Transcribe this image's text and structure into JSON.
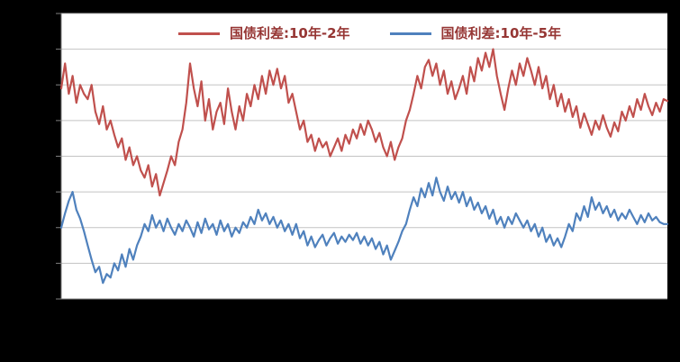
{
  "colors": {
    "page_bg": "#000000",
    "plot_bg": "#ffffff",
    "grid": "#c3c3c3",
    "axis": "#808080",
    "legend_text": "#963634"
  },
  "legend": {
    "series1_label": "国债利差:10年-2年",
    "series2_label": "国债利差:10年-5年"
  },
  "chart_data": {
    "type": "line",
    "title": "",
    "xlabel": "",
    "ylabel": "",
    "ylim": [
      0,
      160
    ],
    "gridline_step": 20,
    "grid": true,
    "legend_position": "top",
    "series": [
      {
        "name": "国债利差:10年-2年",
        "color": "#C0504D",
        "values": [
          118,
          132,
          115,
          125,
          110,
          120,
          115,
          112,
          120,
          105,
          98,
          108,
          95,
          100,
          92,
          85,
          90,
          78,
          85,
          75,
          80,
          72,
          68,
          75,
          63,
          70,
          58,
          65,
          72,
          80,
          75,
          88,
          95,
          110,
          132,
          118,
          108,
          122,
          100,
          112,
          95,
          105,
          110,
          98,
          118,
          105,
          95,
          108,
          100,
          115,
          108,
          120,
          112,
          125,
          115,
          128,
          120,
          129,
          118,
          125,
          110,
          115,
          105,
          95,
          100,
          88,
          92,
          83,
          90,
          85,
          88,
          80,
          85,
          90,
          83,
          92,
          87,
          95,
          90,
          98,
          92,
          100,
          95,
          88,
          93,
          85,
          80,
          88,
          78,
          85,
          90,
          100,
          106,
          115,
          125,
          118,
          130,
          134,
          125,
          132,
          120,
          128,
          115,
          122,
          112,
          118,
          125,
          115,
          130,
          122,
          135,
          128,
          138,
          130,
          140,
          125,
          115,
          106,
          118,
          128,
          120,
          132,
          125,
          135,
          128,
          120,
          130,
          118,
          125,
          112,
          120,
          108,
          115,
          105,
          112,
          102,
          108,
          96,
          104,
          98,
          92,
          100,
          95,
          103,
          96,
          91,
          99,
          94,
          105,
          100,
          108,
          102,
          112,
          106,
          115,
          108,
          103,
          110,
          105,
          112,
          111
        ]
      },
      {
        "name": "国债利差:10年-5年",
        "color": "#4F81BD",
        "values": [
          40,
          48,
          55,
          60,
          50,
          45,
          38,
          30,
          22,
          15,
          18,
          9,
          14,
          12,
          20,
          16,
          25,
          18,
          28,
          22,
          30,
          35,
          42,
          38,
          47,
          40,
          44,
          38,
          45,
          40,
          36,
          42,
          38,
          44,
          40,
          35,
          43,
          37,
          45,
          39,
          42,
          36,
          44,
          38,
          42,
          35,
          40,
          37,
          43,
          40,
          46,
          42,
          50,
          44,
          48,
          42,
          46,
          40,
          44,
          38,
          42,
          36,
          42,
          34,
          38,
          30,
          35,
          29,
          33,
          36,
          30,
          34,
          37,
          31,
          35,
          32,
          36,
          33,
          37,
          31,
          35,
          30,
          34,
          28,
          32,
          25,
          30,
          22,
          27,
          32,
          38,
          42,
          50,
          57,
          52,
          62,
          57,
          65,
          58,
          68,
          60,
          55,
          63,
          56,
          60,
          54,
          60,
          52,
          57,
          50,
          54,
          48,
          52,
          45,
          50,
          42,
          46,
          40,
          46,
          42,
          48,
          44,
          40,
          44,
          38,
          42,
          35,
          40,
          32,
          36,
          30,
          34,
          29,
          35,
          42,
          38,
          48,
          44,
          52,
          46,
          57,
          50,
          54,
          48,
          52,
          46,
          50,
          44,
          48,
          45,
          50,
          46,
          42,
          47,
          43,
          48,
          44,
          46,
          43,
          42,
          42
        ]
      }
    ]
  }
}
